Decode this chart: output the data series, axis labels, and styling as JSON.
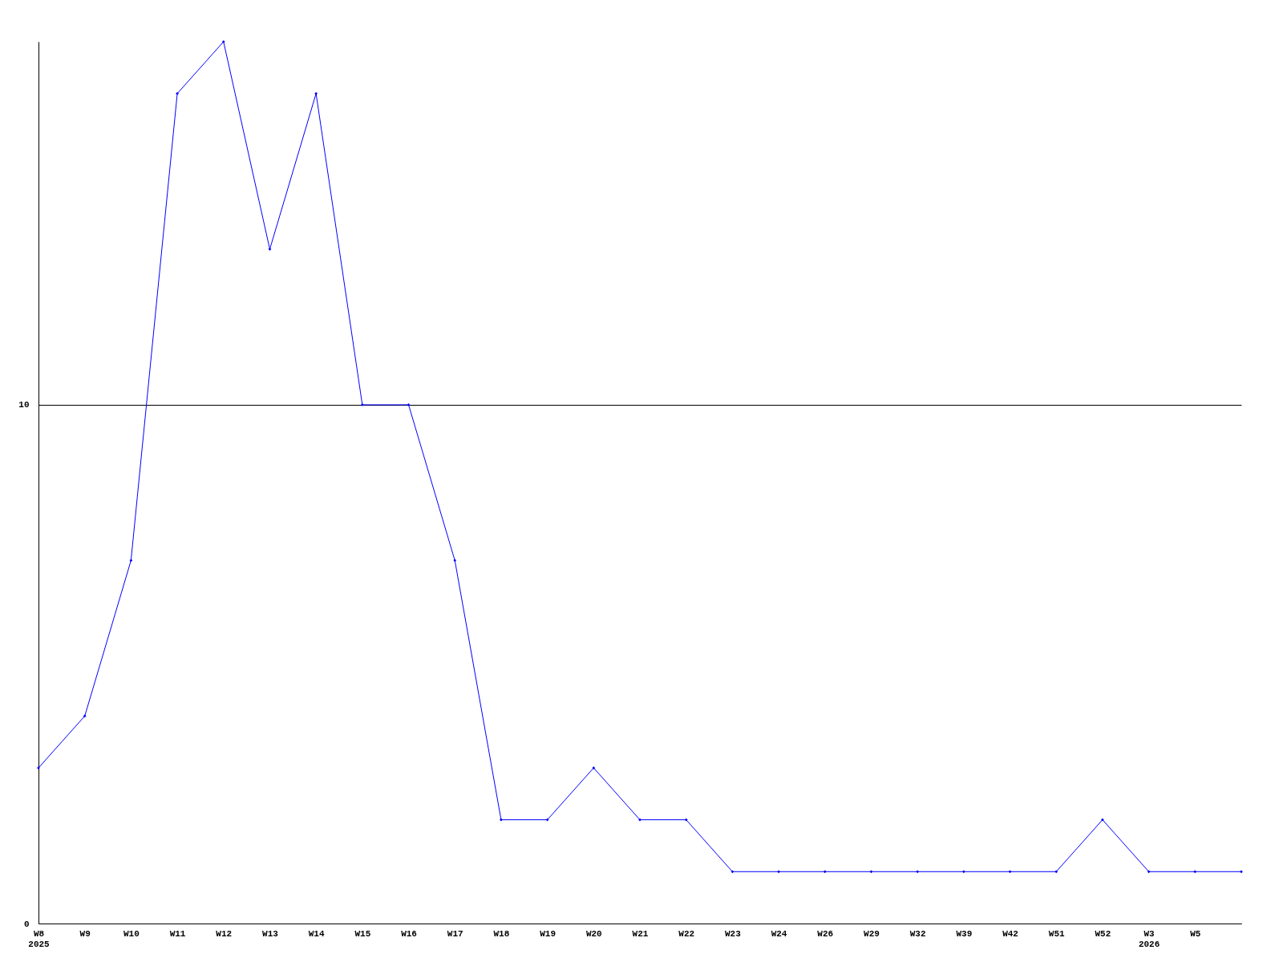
{
  "chart_data": {
    "type": "line",
    "categories": [
      "W8\n2025",
      "W9",
      "W10",
      "W11",
      "W12",
      "W13",
      "W14",
      "W15",
      "W16",
      "W17",
      "W18",
      "W19",
      "W20",
      "W21",
      "W22",
      "W23",
      "W24",
      "W26",
      "W29",
      "W32",
      "W39",
      "W42",
      "W51",
      "W52",
      "W3\n2026",
      "W5",
      null
    ],
    "series": [
      {
        "color": "#0000ff",
        "values": [
          3,
          4,
          7,
          16,
          17,
          13,
          16,
          10,
          10,
          7,
          2,
          2,
          3,
          2,
          2,
          1,
          1,
          1,
          1,
          1,
          1,
          1,
          1,
          2,
          1,
          1,
          1
        ]
      }
    ],
    "ylim": [
      0,
      17
    ],
    "yticks": [
      0,
      10
    ],
    "grid": "y",
    "marker": "diamond",
    "line_style": "solid"
  }
}
